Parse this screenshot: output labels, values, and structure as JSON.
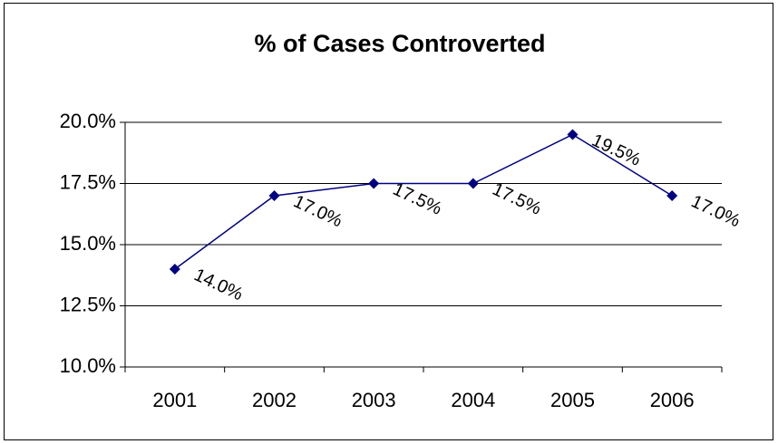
{
  "chart_data": {
    "type": "line",
    "title": "% of Cases Controverted",
    "categories": [
      "2001",
      "2002",
      "2003",
      "2004",
      "2005",
      "2006"
    ],
    "series": [
      {
        "color": "#000080",
        "values": [
          14,
          17,
          17.5,
          17.5,
          19.5,
          17
        ],
        "value_labels": [
          "14.0%",
          "17.0%",
          "17.5%",
          "17.5%",
          "19.5%",
          "17.0%"
        ]
      }
    ],
    "ylim": [
      10,
      20
    ],
    "yticks": [
      {
        "value": 10,
        "label": "10.0%"
      },
      {
        "value": 12.5,
        "label": "12.5%"
      },
      {
        "value": 15,
        "label": "15.0%"
      },
      {
        "value": 17.5,
        "label": "17.5%"
      },
      {
        "value": 20,
        "label": "20.0%"
      }
    ],
    "grid": true
  }
}
